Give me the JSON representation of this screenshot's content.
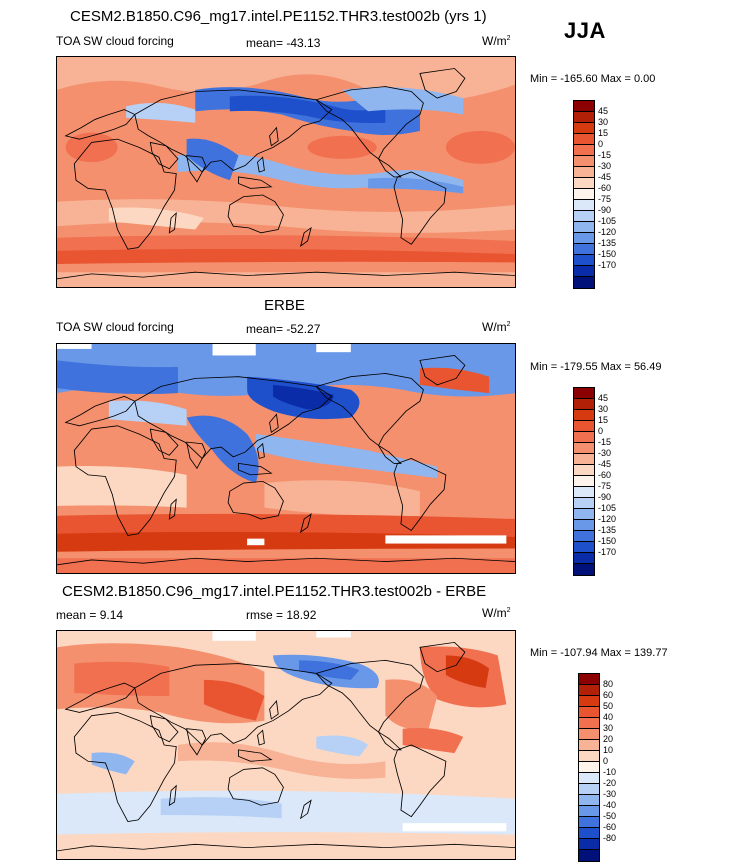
{
  "season": "JJA",
  "panels": [
    {
      "title": "CESM2.B1850.C96_mg17.intel.PE1152.THR3.test002b (yrs 1)",
      "variable": "TOA SW cloud forcing",
      "stat_text": "mean= -43.13",
      "units_base": "W/m",
      "units_exp": "2",
      "minmax": "Min = -165.60 Max =   0.00",
      "colorbar": {
        "labels": [
          "45",
          "30",
          "15",
          "0",
          "-15",
          "-30",
          "-45",
          "-60",
          "-75",
          "-90",
          "-105",
          "-120",
          "-135",
          "-150",
          "-170"
        ],
        "colors": [
          "#8b0000",
          "#b22008",
          "#d63a10",
          "#e85530",
          "#f07050",
          "#f4906e",
          "#f8b295",
          "#fcd8c2",
          "#fff4ec",
          "#dbe8fa",
          "#b7d0f5",
          "#90b6ef",
          "#6a98e8",
          "#3f72dc",
          "#1f50cc",
          "#0a2ca8",
          "#00127a"
        ]
      }
    },
    {
      "title": "ERBE",
      "variable": "TOA SW cloud forcing",
      "stat_text": "mean= -52.27",
      "units_base": "W/m",
      "units_exp": "2",
      "minmax": "Min = -179.55 Max =  56.49",
      "colorbar": {
        "labels": [
          "45",
          "30",
          "15",
          "0",
          "-15",
          "-30",
          "-45",
          "-60",
          "-75",
          "-90",
          "-105",
          "-120",
          "-135",
          "-150",
          "-170"
        ],
        "colors": [
          "#8b0000",
          "#b22008",
          "#d63a10",
          "#e85530",
          "#f07050",
          "#f4906e",
          "#f8b295",
          "#fcd8c2",
          "#fff4ec",
          "#dbe8fa",
          "#b7d0f5",
          "#90b6ef",
          "#6a98e8",
          "#3f72dc",
          "#1f50cc",
          "#0a2ca8",
          "#00127a"
        ]
      }
    },
    {
      "title": "CESM2.B1850.C96_mg17.intel.PE1152.THR3.test002b - ERBE",
      "mean_text": "mean =   9.14",
      "rmse_text": "rmse =   18.92",
      "units_base": "W/m",
      "units_exp": "2",
      "minmax": "Min = -107.94 Max = 139.77",
      "colorbar": {
        "labels": [
          "80",
          "60",
          "50",
          "40",
          "30",
          "20",
          "10",
          "0",
          "-10",
          "-20",
          "-30",
          "-40",
          "-50",
          "-60",
          "-80"
        ],
        "colors": [
          "#8b0000",
          "#b22008",
          "#d63a10",
          "#e85530",
          "#f07050",
          "#f4906e",
          "#f8b295",
          "#fcd8c2",
          "#fff4ec",
          "#dbe8fa",
          "#b7d0f5",
          "#90b6ef",
          "#6a98e8",
          "#3f72dc",
          "#1f50cc",
          "#0a2ca8",
          "#00127a"
        ]
      }
    }
  ]
}
